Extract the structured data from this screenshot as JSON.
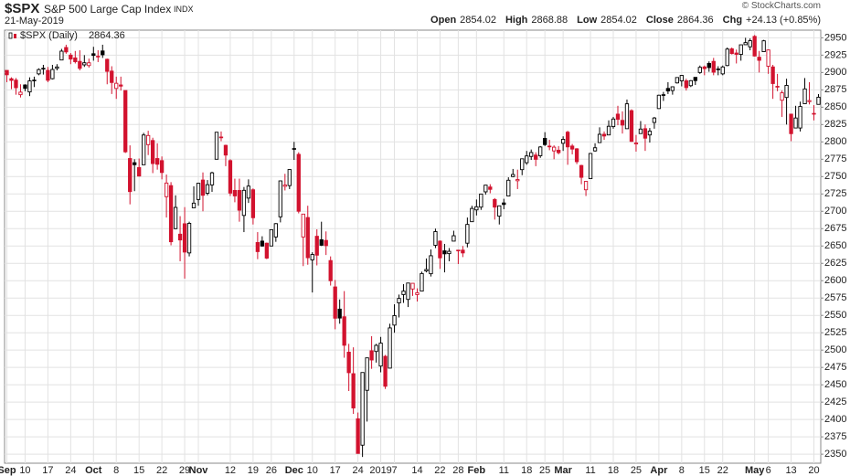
{
  "header": {
    "symbol": "$SPX",
    "name": "S&P 500 Large Cap Index",
    "exchange": "INDX",
    "date": "21-May-2019",
    "credit": "© StockCharts.com",
    "quote": [
      {
        "label": "Open",
        "value": "2854.02"
      },
      {
        "label": "High",
        "value": "2868.88"
      },
      {
        "label": "Low",
        "value": "2854.02"
      },
      {
        "label": "Close",
        "value": "2864.36"
      },
      {
        "label": "Chg",
        "value": "+24.13 (+0.85%)"
      }
    ]
  },
  "chart_data": {
    "type": "candlestick",
    "legend": "$SPX (Daily)",
    "up_color": "#000000",
    "down_color": "#d2122e",
    "grid": true,
    "ylim": [
      2337,
      2961
    ],
    "yticks": [
      2350,
      2375,
      2400,
      2425,
      2450,
      2475,
      2500,
      2525,
      2550,
      2575,
      2600,
      2625,
      2650,
      2675,
      2700,
      2725,
      2750,
      2775,
      2800,
      2825,
      2850,
      2875,
      2900,
      2925,
      2950
    ],
    "categories": [
      "Sep",
      null,
      null,
      null,
      "10",
      null,
      null,
      null,
      null,
      "17",
      null,
      null,
      null,
      null,
      "24",
      null,
      null,
      null,
      null,
      "Oct",
      null,
      null,
      null,
      null,
      "8",
      null,
      null,
      null,
      null,
      "15",
      null,
      null,
      null,
      null,
      "22",
      null,
      null,
      null,
      null,
      "29",
      null,
      null,
      "Nov",
      null,
      null,
      null,
      null,
      null,
      null,
      "12",
      null,
      null,
      null,
      null,
      "19",
      null,
      null,
      null,
      "26",
      null,
      null,
      null,
      null,
      "Dec",
      null,
      null,
      null,
      "10",
      null,
      null,
      null,
      null,
      "17",
      null,
      null,
      null,
      null,
      "24",
      null,
      null,
      null,
      null,
      "2019",
      null,
      null,
      "7",
      null,
      null,
      null,
      null,
      "14",
      null,
      null,
      null,
      null,
      "22",
      null,
      null,
      null,
      "28",
      null,
      null,
      null,
      "Feb",
      null,
      null,
      null,
      null,
      null,
      "11",
      null,
      null,
      null,
      null,
      "18",
      null,
      null,
      null,
      "25",
      null,
      null,
      null,
      "Mar",
      null,
      null,
      null,
      null,
      null,
      "11",
      null,
      null,
      null,
      null,
      "18",
      null,
      null,
      null,
      null,
      "25",
      null,
      null,
      null,
      null,
      "Apr",
      null,
      null,
      null,
      null,
      "8",
      null,
      null,
      null,
      null,
      "15",
      null,
      null,
      null,
      "22",
      null,
      null,
      null,
      null,
      null,
      null,
      "May",
      null,
      null,
      "6",
      null,
      null,
      null,
      null,
      "13",
      null,
      null,
      null,
      null,
      "20",
      null
    ],
    "open": [
      2903,
      2891,
      2889,
      2868,
      2882,
      2872,
      2889,
      2898,
      2906,
      2903,
      2891,
      2906,
      2918,
      2936,
      2925,
      2921,
      2916,
      2911,
      2910,
      2927,
      2923,
      2931,
      2919,
      2902,
      2877,
      2882,
      2874,
      2776,
      2770,
      2763,
      2767,
      2796,
      2802,
      2776,
      2773,
      2721,
      2737,
      2675,
      2667,
      2682,
      2640,
      2705,
      2717,
      2745,
      2726,
      2738,
      2775,
      2807,
      2795,
      2773,
      2730,
      2730,
      2694,
      2719,
      2731,
      2655,
      2657,
      2654,
      2650,
      2663,
      2692,
      2736,
      2737,
      2790,
      2782,
      2663,
      2691,
      2630,
      2664,
      2659,
      2658,
      2629,
      2591,
      2559,
      2548,
      2497,
      2466,
      2401,
      2363,
      2442,
      2499,
      2498,
      2477,
      2491,
      2474,
      2536,
      2568,
      2580,
      2573,
      2588,
      2580,
      2585,
      2614,
      2610,
      2651,
      2657,
      2643,
      2639,
      2657,
      2644,
      2644,
      2654,
      2685,
      2702,
      2706,
      2728,
      2735,
      2717,
      2693,
      2712,
      2722,
      2750,
      2744,
      2760,
      2770,
      2779,
      2781,
      2780,
      2805,
      2793,
      2787,
      2788,
      2798,
      2814,
      2794,
      2790,
      2766,
      2731,
      2747,
      2787,
      2799,
      2811,
      2810,
      2822,
      2840,
      2831,
      2819,
      2845,
      2797,
      2812,
      2819,
      2810,
      2828,
      2848,
      2868,
      2877,
      2874,
      2885,
      2888,
      2888,
      2881,
      2893,
      2900,
      2908,
      2913,
      2916,
      2904,
      2898,
      2910,
      2934,
      2928,
      2926,
      2940,
      2937,
      2952,
      2922,
      2930,
      2909,
      2908,
      2880,
      2860,
      2864,
      2840,
      2820,
      2820,
      2855,
      2858,
      2841,
      2854.02
    ],
    "high": [
      2903,
      2893,
      2892,
      2883,
      2883,
      2893,
      2894,
      2906,
      2911,
      2908,
      2911,
      2912,
      2934,
      2940,
      2928,
      2931,
      2932,
      2925,
      2920,
      2937,
      2932,
      2940,
      2920,
      2909,
      2894,
      2894,
      2874,
      2795,
      2775,
      2776,
      2813,
      2816,
      2806,
      2798,
      2779,
      2753,
      2742,
      2723,
      2693,
      2706,
      2685,
      2736,
      2741,
      2756,
      2745,
      2757,
      2814,
      2815,
      2796,
      2775,
      2747,
      2747,
      2735,
      2746,
      2733,
      2670,
      2664,
      2655,
      2674,
      2683,
      2744,
      2754,
      2760,
      2800,
      2785,
      2696,
      2708,
      2641,
      2674,
      2685,
      2671,
      2635,
      2601,
      2573,
      2585,
      2509,
      2504,
      2410,
      2468,
      2489,
      2520,
      2509,
      2519,
      2493,
      2538,
      2566,
      2580,
      2595,
      2597,
      2596,
      2589,
      2613,
      2632,
      2645,
      2675,
      2658,
      2653,
      2647,
      2672,
      2644,
      2650,
      2691,
      2708,
      2717,
      2725,
      2738,
      2739,
      2719,
      2708,
      2718,
      2749,
      2761,
      2760,
      2776,
      2787,
      2789,
      2785,
      2794,
      2814,
      2803,
      2795,
      2794,
      2808,
      2816,
      2797,
      2791,
      2767,
      2743,
      2784,
      2798,
      2821,
      2815,
      2831,
      2836,
      2852,
      2844,
      2861,
      2847,
      2810,
      2830,
      2825,
      2820,
      2836,
      2868,
      2872,
      2886,
      2880,
      2893,
      2896,
      2891,
      2889,
      2893,
      2910,
      2910,
      2916,
      2921,
      2909,
      2910,
      2936,
      2936,
      2933,
      2940,
      2950,
      2949,
      2954,
      2931,
      2947,
      2933,
      2911,
      2898,
      2874,
      2891,
      2840,
      2852,
      2858,
      2892,
      2886,
      2853,
      2868.88
    ],
    "low": [
      2886,
      2876,
      2868,
      2864,
      2873,
      2866,
      2879,
      2896,
      2897,
      2886,
      2890,
      2903,
      2918,
      2927,
      2912,
      2913,
      2903,
      2908,
      2907,
      2917,
      2915,
      2921,
      2883,
      2869,
      2862,
      2874,
      2784,
      2710,
      2729,
      2750,
      2767,
      2781,
      2755,
      2760,
      2746,
      2691,
      2651,
      2674,
      2628,
      2603,
      2635,
      2705,
      2708,
      2700,
      2723,
      2728,
      2775,
      2801,
      2765,
      2722,
      2713,
      2685,
      2670,
      2712,
      2681,
      2631,
      2649,
      2631,
      2650,
      2656,
      2684,
      2730,
      2732,
      2774,
      2697,
      2621,
      2623,
      2583,
      2622,
      2650,
      2637,
      2593,
      2530,
      2538,
      2489,
      2441,
      2408,
      2351,
      2346,
      2397,
      2473,
      2482,
      2468,
      2444,
      2474,
      2525,
      2547,
      2568,
      2562,
      2578,
      2570,
      2585,
      2612,
      2606,
      2647,
      2617,
      2612,
      2628,
      2657,
      2624,
      2634,
      2648,
      2685,
      2694,
      2702,
      2724,
      2726,
      2688,
      2681,
      2703,
      2722,
      2749,
      2732,
      2752,
      2767,
      2774,
      2765,
      2777,
      2794,
      2788,
      2775,
      2782,
      2787,
      2767,
      2782,
      2768,
      2739,
      2722,
      2747,
      2786,
      2799,
      2803,
      2810,
      2819,
      2824,
      2812,
      2819,
      2800,
      2786,
      2812,
      2787,
      2799,
      2819,
      2848,
      2859,
      2869,
      2868,
      2884,
      2880,
      2874,
      2879,
      2882,
      2898,
      2896,
      2901,
      2896,
      2896,
      2896,
      2909,
      2926,
      2913,
      2917,
      2940,
      2932,
      2923,
      2900,
      2930,
      2898,
      2862,
      2873,
      2836,
      2825,
      2801,
      2820,
      2815,
      2855,
      2854,
      2831,
      2854.02
    ],
    "close": [
      2896.72,
      2888.6,
      2878.05,
      2871.68,
      2877.13,
      2887.89,
      2888.92,
      2904.18,
      2904.98,
      2888.8,
      2904.31,
      2907.95,
      2930.75,
      2929.67,
      2919.37,
      2915.56,
      2905.97,
      2914,
      2913.98,
      2924.59,
      2923.43,
      2925.51,
      2901.61,
      2885.57,
      2884.43,
      2880.34,
      2785.68,
      2728.37,
      2767.13,
      2750.79,
      2809.92,
      2809.21,
      2768.78,
      2767.78,
      2755.88,
      2740.69,
      2656.1,
      2705.57,
      2658.69,
      2641.25,
      2682.63,
      2711.74,
      2740.37,
      2723.06,
      2738.31,
      2755.45,
      2813.89,
      2806.83,
      2781.01,
      2726.22,
      2722.18,
      2701.58,
      2730.2,
      2736.27,
      2690.73,
      2641.89,
      2649.93,
      2632.56,
      2673.45,
      2682.17,
      2743.79,
      2737.8,
      2760.17,
      2790.37,
      2700.06,
      2695.95,
      2633.08,
      2637.72,
      2636.78,
      2651.07,
      2650.54,
      2599.95,
      2545.94,
      2546.16,
      2506.96,
      2467.42,
      2416.62,
      2351.1,
      2467.7,
      2488.83,
      2485.74,
      2506.85,
      2510.03,
      2447.89,
      2531.94,
      2549.69,
      2574.41,
      2584.96,
      2596.64,
      2596.26,
      2582.61,
      2610.3,
      2616.1,
      2635.96,
      2670.71,
      2632.9,
      2638.7,
      2642.33,
      2664.76,
      2643.85,
      2640,
      2681.05,
      2704.1,
      2706.53,
      2724.87,
      2737.7,
      2731.61,
      2706.05,
      2707.88,
      2709.8,
      2744.73,
      2753.03,
      2745.73,
      2775.6,
      2779.76,
      2784.7,
      2774.88,
      2792.67,
      2796.11,
      2793.9,
      2792.38,
      2784.49,
      2803.69,
      2792.81,
      2789.65,
      2771.45,
      2748.93,
      2743.07,
      2783.3,
      2791.52,
      2810.92,
      2808.48,
      2822.48,
      2832.94,
      2832.57,
      2824.23,
      2854.88,
      2800.71,
      2798.36,
      2818.46,
      2805.37,
      2815.44,
      2834.4,
      2867.19,
      2867.24,
      2873.4,
      2879.39,
      2892.74,
      2895.77,
      2878.2,
      2888.21,
      2888.32,
      2907.41,
      2905.58,
      2907.06,
      2900.45,
      2905.03,
      2907.97,
      2933.68,
      2927.25,
      2926.17,
      2939.88,
      2943.03,
      2945.83,
      2923.73,
      2917.52,
      2945.64,
      2932.47,
      2884.05,
      2879.42,
      2870.72,
      2881.4,
      2811.87,
      2834.41,
      2850.96,
      2876.32,
      2859.53,
      2840.23,
      2864.36
    ]
  }
}
